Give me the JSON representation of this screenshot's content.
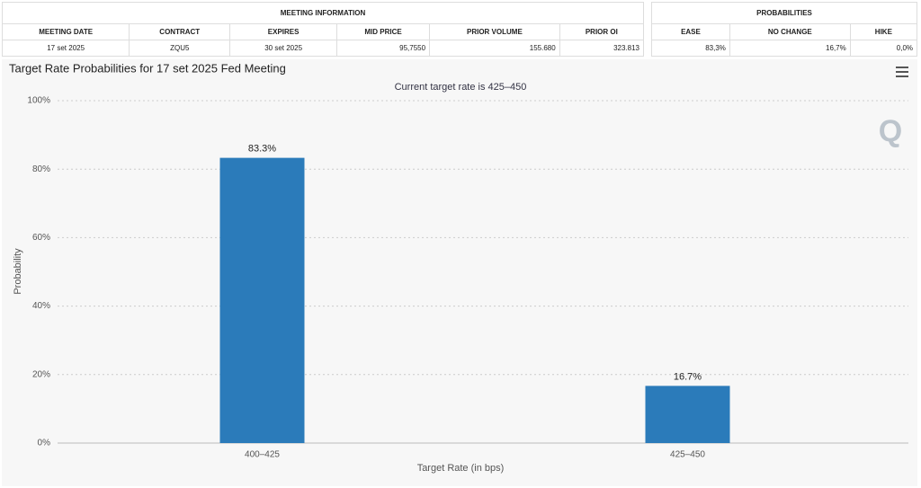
{
  "meeting_info": {
    "title": "MEETING INFORMATION",
    "headers": [
      "MEETING DATE",
      "CONTRACT",
      "EXPIRES",
      "MID PRICE",
      "PRIOR VOLUME",
      "PRIOR OI"
    ],
    "rows": [
      [
        "17 set 2025",
        "ZQU5",
        "30 set 2025",
        "95,7550",
        "155.680",
        "323.813"
      ]
    ]
  },
  "probabilities": {
    "title": "PROBABILITIES",
    "headers": [
      "EASE",
      "NO CHANGE",
      "HIKE"
    ],
    "rows": [
      [
        "83,3%",
        "16,7%",
        "0,0%"
      ]
    ]
  },
  "chart_data": {
    "type": "bar",
    "title": "Target Rate Probabilities for 17 set 2025 Fed Meeting",
    "subtitle": "Current target rate is 425–450",
    "x_label": "Target Rate (in bps)",
    "y_label": "Probability",
    "categories": [
      "400–425",
      "425–450"
    ],
    "values": [
      83.3,
      16.7
    ],
    "value_labels": [
      "83.3%",
      "16.7%"
    ],
    "color": "#2b7bba",
    "ylim": [
      0,
      100
    ],
    "yticks": [
      {
        "value": 0,
        "label": "0%"
      },
      {
        "value": 20,
        "label": "20%"
      },
      {
        "value": 40,
        "label": "40%"
      },
      {
        "value": 60,
        "label": "60%"
      },
      {
        "value": 80,
        "label": "80%"
      },
      {
        "value": 100,
        "label": "100%"
      }
    ],
    "grid": true
  }
}
